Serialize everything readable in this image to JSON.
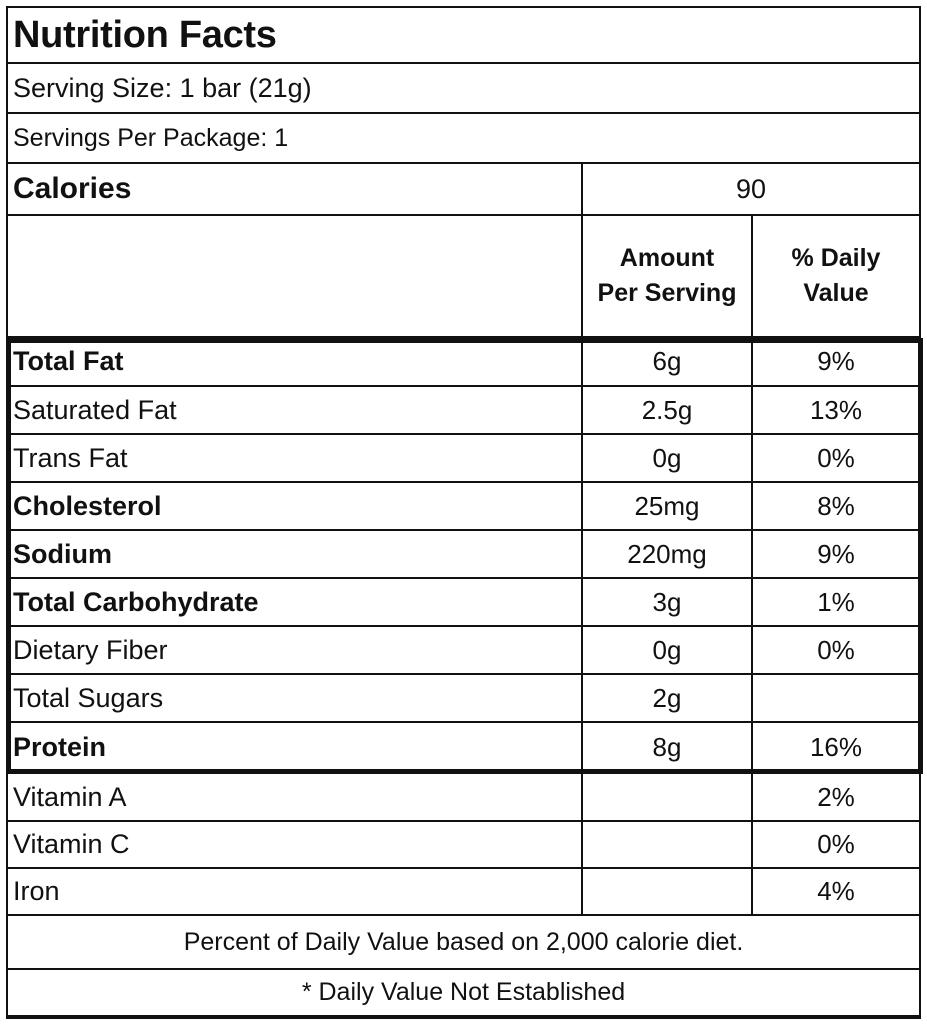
{
  "title": "Nutrition Facts",
  "serving_size": "Serving Size: 1 bar (21g)",
  "servings_per_package": "Servings Per Package: 1",
  "calories": {
    "label": "Calories",
    "value": "90"
  },
  "columns": {
    "amount_line1": "Amount",
    "amount_line2": "Per Serving",
    "dv_line1": "% Daily",
    "dv_line2": "Value"
  },
  "nutrients": [
    {
      "name": "Total Fat",
      "amount": "6g",
      "dv": "9%"
    },
    {
      "name": "Saturated Fat",
      "amount": "2.5g",
      "dv": "13%"
    },
    {
      "name": "Trans Fat",
      "amount": "0g",
      "dv": "0%"
    },
    {
      "name": "Cholesterol",
      "amount": "25mg",
      "dv": "8%"
    },
    {
      "name": "Sodium",
      "amount": "220mg",
      "dv": "9%"
    },
    {
      "name": "Total Carbohydrate",
      "amount": "3g",
      "dv": "1%"
    },
    {
      "name": "Dietary Fiber",
      "amount": "0g",
      "dv": "0%"
    },
    {
      "name": "Total Sugars",
      "amount": "2g",
      "dv": ""
    },
    {
      "name": "Protein",
      "amount": "8g",
      "dv": "16%"
    }
  ],
  "vitamins": [
    {
      "name": "Vitamin A",
      "amount": "",
      "dv": "2%"
    },
    {
      "name": "Vitamin C",
      "amount": "",
      "dv": "0%"
    },
    {
      "name": "Iron",
      "amount": "",
      "dv": "4%"
    }
  ],
  "footnote_1": "Percent of Daily Value based on 2,000 calorie diet.",
  "footnote_2": "* Daily Value Not Established"
}
